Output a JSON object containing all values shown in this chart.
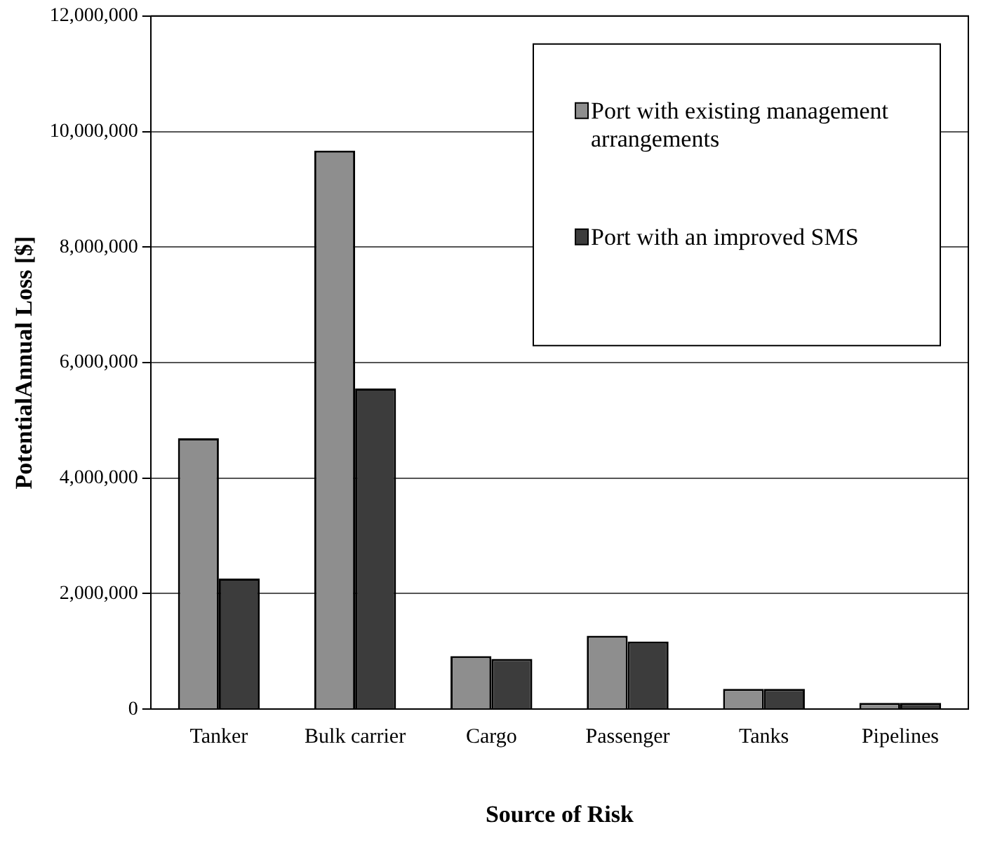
{
  "chart_data": {
    "type": "bar",
    "xlabel": "Source of Risk",
    "ylabel": "PotentialAnnual Loss [$]",
    "categories": [
      "Tanker",
      "Bulk carrier",
      "Cargo",
      "Passenger",
      "Tanks",
      "Pipelines"
    ],
    "series": [
      {
        "name": "Port with existing management arrangements",
        "color": "#8e8e8e",
        "values": [
          4690000,
          9670000,
          920000,
          1270000,
          350000,
          110000
        ]
      },
      {
        "name": "Port with an improved SMS",
        "color": "#3c3c3c",
        "values": [
          2260000,
          5550000,
          870000,
          1170000,
          350000,
          110000
        ]
      }
    ],
    "ylim": [
      0,
      12000000
    ],
    "yticks": [
      {
        "value": 0,
        "label": "0"
      },
      {
        "value": 2000000,
        "label": "2,000,000"
      },
      {
        "value": 4000000,
        "label": "4,000,000"
      },
      {
        "value": 6000000,
        "label": "6,000,000"
      },
      {
        "value": 8000000,
        "label": "8,000,000"
      },
      {
        "value": 10000000,
        "label": "10,000,000"
      },
      {
        "value": 12000000,
        "label": "12,000,000"
      }
    ],
    "grid": "y",
    "legend": "top right"
  }
}
